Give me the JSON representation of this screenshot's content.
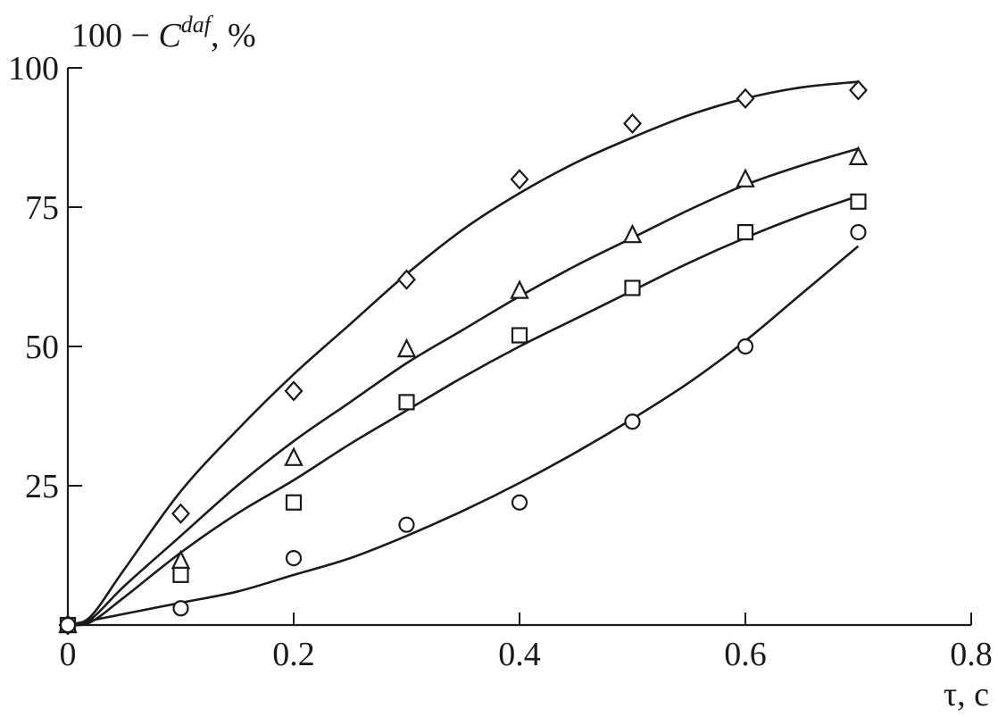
{
  "chart_data": {
    "type": "scatter",
    "title": "",
    "ylabel": {
      "prefix": "100 − ",
      "symbol": "C",
      "superscript": "daf",
      "suffix": ", %"
    },
    "xlabel": "τ, c",
    "xlim": [
      0,
      0.8
    ],
    "ylim": [
      0,
      100
    ],
    "x_ticks": [
      0,
      0.2,
      0.4,
      0.6,
      0.8
    ],
    "x_tick_labels": [
      "0",
      "0.2",
      "0.4",
      "0.6",
      "0.8"
    ],
    "y_ticks": [
      25,
      50,
      75,
      100
    ],
    "y_tick_labels": [
      "25",
      "50",
      "75",
      "100"
    ],
    "grid": false,
    "series": [
      {
        "marker": "diamond",
        "x": [
          0,
          0.1,
          0.2,
          0.3,
          0.4,
          0.5,
          0.6,
          0.7
        ],
        "y": [
          0,
          20,
          42,
          62,
          80,
          90,
          94.5,
          96
        ],
        "curve": {
          "x": [
            0,
            0.02,
            0.05,
            0.1,
            0.15,
            0.2,
            0.25,
            0.3,
            0.35,
            0.4,
            0.45,
            0.5,
            0.55,
            0.6,
            0.65,
            0.7
          ],
          "y": [
            0,
            1.5,
            10,
            24,
            35,
            45,
            54,
            63,
            71,
            77.5,
            83,
            87.5,
            91.5,
            94.5,
            96.5,
            97.5
          ]
        }
      },
      {
        "marker": "triangle",
        "x": [
          0,
          0.1,
          0.2,
          0.3,
          0.4,
          0.5,
          0.6,
          0.7
        ],
        "y": [
          0,
          11.5,
          30,
          49.5,
          60,
          70,
          80,
          84
        ],
        "curve": {
          "x": [
            0,
            0.02,
            0.05,
            0.1,
            0.15,
            0.2,
            0.25,
            0.3,
            0.35,
            0.4,
            0.45,
            0.5,
            0.55,
            0.6,
            0.65,
            0.7
          ],
          "y": [
            0,
            1,
            7,
            16,
            25,
            33,
            40,
            47,
            53,
            59,
            64.5,
            69.5,
            74.5,
            79,
            82.5,
            85.5
          ]
        }
      },
      {
        "marker": "square",
        "x": [
          0,
          0.1,
          0.2,
          0.3,
          0.4,
          0.5,
          0.6,
          0.7
        ],
        "y": [
          0,
          9,
          22,
          40,
          52,
          60.5,
          70.5,
          76
        ],
        "curve": {
          "x": [
            0,
            0.02,
            0.05,
            0.1,
            0.15,
            0.2,
            0.25,
            0.3,
            0.35,
            0.4,
            0.45,
            0.5,
            0.55,
            0.6,
            0.65,
            0.7
          ],
          "y": [
            0,
            0.5,
            5,
            13,
            20,
            26,
            32.5,
            38.5,
            44.5,
            50,
            55,
            60,
            65,
            69.5,
            73.5,
            77
          ]
        }
      },
      {
        "marker": "circle",
        "x": [
          0,
          0.1,
          0.2,
          0.3,
          0.4,
          0.5,
          0.6,
          0.7
        ],
        "y": [
          0,
          3,
          12,
          18,
          22,
          36.5,
          50,
          70.5
        ],
        "curve": {
          "x": [
            0,
            0.05,
            0.1,
            0.15,
            0.2,
            0.25,
            0.3,
            0.35,
            0.4,
            0.45,
            0.5,
            0.55,
            0.6,
            0.65,
            0.7
          ],
          "y": [
            0,
            2,
            4,
            6,
            9,
            12,
            16,
            20.5,
            25.5,
            31,
            37,
            43.5,
            51,
            59.5,
            68
          ]
        }
      }
    ]
  }
}
